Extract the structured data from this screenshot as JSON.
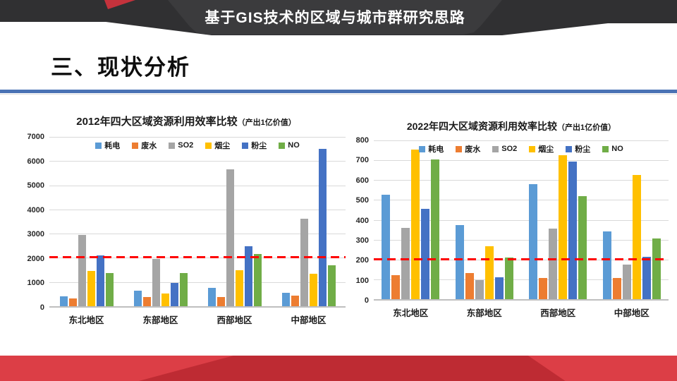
{
  "header": {
    "title": "基于GIS技术的区域与城市群研究思路"
  },
  "section": {
    "heading": "三、现状分析"
  },
  "colors": {
    "banner_dark": "#303032",
    "banner_center": "#3B3B3D",
    "banner_red": "#C4323C",
    "divider_blue": "#4A72B4",
    "footer_red_light": "#DC3E46",
    "footer_red_dark": "#BE2B33",
    "reference_line": "#FE0000",
    "gridline": "#D9D9D9"
  },
  "chart_data": [
    {
      "type": "bar",
      "title": "2012年四大区域资源利用效率比较",
      "title_note": "（产出1亿价值）",
      "categories": [
        "东北地区",
        "东部地区",
        "西部地区",
        "中部地区"
      ],
      "series": [
        {
          "name": "耗电",
          "color": "#5B9BD5",
          "values": [
            400,
            640,
            760,
            550
          ]
        },
        {
          "name": "废水",
          "color": "#ED7D31",
          "values": [
            330,
            390,
            390,
            440
          ]
        },
        {
          "name": "SO2",
          "color": "#A5A5A5",
          "values": [
            2950,
            1950,
            5650,
            3620
          ]
        },
        {
          "name": "烟尘",
          "color": "#FFC000",
          "values": [
            1450,
            520,
            1480,
            1350
          ]
        },
        {
          "name": "粉尘",
          "color": "#4472C4",
          "values": [
            2100,
            960,
            2480,
            6500
          ]
        },
        {
          "name": "NO",
          "color": "#70AD47",
          "values": [
            1370,
            1370,
            2150,
            1700
          ]
        }
      ],
      "ylim": [
        0,
        7000
      ],
      "ytick_step": 1000,
      "grid": true,
      "legend_position": "top",
      "ref_line": {
        "value": 2000,
        "color": "#FE0000",
        "style": "dashed"
      }
    },
    {
      "type": "bar",
      "title": "2022年四大区域资源利用效率比较",
      "title_note": "（产出1亿价值）",
      "categories": [
        "东北地区",
        "东部地区",
        "西部地区",
        "中部地区"
      ],
      "series": [
        {
          "name": "耗电",
          "color": "#5B9BD5",
          "values": [
            525,
            375,
            580,
            340
          ]
        },
        {
          "name": "废水",
          "color": "#ED7D31",
          "values": [
            120,
            130,
            105,
            105
          ]
        },
        {
          "name": "SO2",
          "color": "#A5A5A5",
          "values": [
            360,
            95,
            355,
            175
          ]
        },
        {
          "name": "烟尘",
          "color": "#FFC000",
          "values": [
            755,
            265,
            725,
            625
          ]
        },
        {
          "name": "粉尘",
          "color": "#4472C4",
          "values": [
            455,
            110,
            695,
            215
          ]
        },
        {
          "name": "NO",
          "color": "#70AD47",
          "values": [
            705,
            210,
            520,
            305
          ]
        }
      ],
      "ylim": [
        0,
        800
      ],
      "ytick_step": 100,
      "grid": true,
      "legend_position": "top",
      "ref_line": {
        "value": 200,
        "color": "#FE0000",
        "style": "dashed"
      }
    }
  ]
}
